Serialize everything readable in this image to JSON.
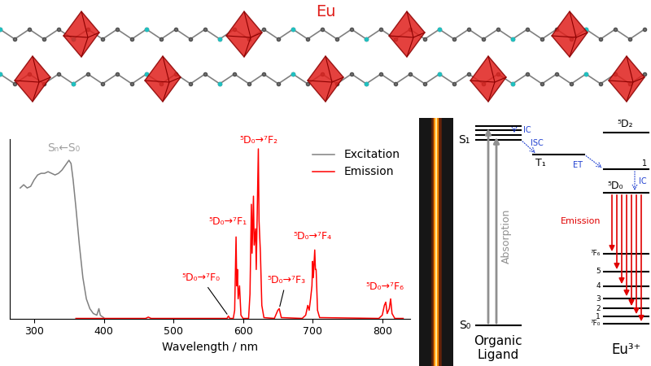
{
  "structure": {
    "label": "Eu",
    "color": "#e0201c"
  },
  "chart_data": {
    "type": "line",
    "xlabel": "Wavelength / nm",
    "xlim": [
      265,
      840
    ],
    "xticks": [
      300,
      400,
      500,
      600,
      700,
      800
    ],
    "ylim": [
      0,
      110
    ],
    "yticks": [],
    "tick_labels": "x",
    "legend": "upper right",
    "band_label": {
      "text": "Sₙ←S₀",
      "color": "#a0a0a0"
    },
    "series": [
      {
        "name": "Excitation",
        "color": "#808080",
        "x": [
          280,
          285,
          290,
          295,
          300,
          305,
          310,
          315,
          320,
          325,
          330,
          335,
          340,
          345,
          350,
          353,
          356,
          360,
          365,
          370,
          375,
          380,
          385,
          390,
          393,
          395,
          398,
          400
        ],
        "values": [
          80,
          82,
          80,
          81,
          85,
          88,
          89,
          89,
          90,
          89,
          88,
          89,
          91,
          94,
          97,
          95,
          85,
          68,
          45,
          25,
          12,
          6,
          3,
          2,
          6,
          2,
          1,
          0.5
        ]
      },
      {
        "name": "Emission",
        "color": "#ff0000",
        "x": [
          360,
          400,
          460,
          464,
          468,
          570,
          577,
          579,
          581,
          586,
          588,
          590,
          591,
          592,
          593,
          595,
          597,
          600,
          608,
          610,
          612,
          613,
          615,
          616,
          618,
          619,
          622,
          623,
          625,
          627,
          630,
          645,
          648,
          650,
          652,
          655,
          685,
          690,
          693,
          695,
          697,
          699,
          700,
          701,
          703,
          704,
          705,
          707,
          710,
          795,
          800,
          803,
          805,
          807,
          810,
          812,
          814,
          818,
          830
        ],
        "values": [
          0,
          0,
          0,
          0.8,
          0,
          0,
          0,
          1.5,
          0,
          0,
          5,
          50,
          20,
          30,
          12,
          20,
          2,
          0,
          0,
          15,
          70,
          40,
          75,
          45,
          55,
          30,
          104,
          60,
          40,
          8,
          0.5,
          0,
          3,
          5,
          6,
          0.5,
          0,
          2,
          8,
          5,
          12,
          20,
          35,
          25,
          42,
          30,
          30,
          5,
          0.5,
          0,
          2,
          8,
          10,
          3,
          6,
          12,
          3,
          0,
          0
        ]
      }
    ],
    "annotations": [
      {
        "text": "⁵D₀→⁷F₀",
        "x": 579,
        "y": 1.5
      },
      {
        "text": "⁵D₀→⁷F₁",
        "x": 590,
        "y": 50
      },
      {
        "text": "⁵D₀→⁷F₂",
        "x": 622,
        "y": 104
      },
      {
        "text": "⁵D₀→⁷F₃",
        "x": 652,
        "y": 6
      },
      {
        "text": "⁵D₀→⁷F₄",
        "x": 703,
        "y": 42
      },
      {
        "text": "⁵D₀→⁷F₆",
        "x": 812,
        "y": 12
      }
    ]
  },
  "diagram": {
    "ligand_title": "Organic\nLigand",
    "ion_title": "Eu³⁺",
    "singlet_labels": [
      "S₁",
      "S₀"
    ],
    "triplet_label": "T₁",
    "absorption": "Absorption",
    "transfer_labels": {
      "ic": "IC",
      "isc": "ISC",
      "et": "ET"
    },
    "emission": "Emission",
    "excited_levels": [
      "⁵D₂",
      "1",
      "⁵D₀"
    ],
    "ground_levels": [
      "⁷F₆",
      "5",
      "4",
      "3",
      "2",
      "1",
      "⁷F₀"
    ]
  }
}
